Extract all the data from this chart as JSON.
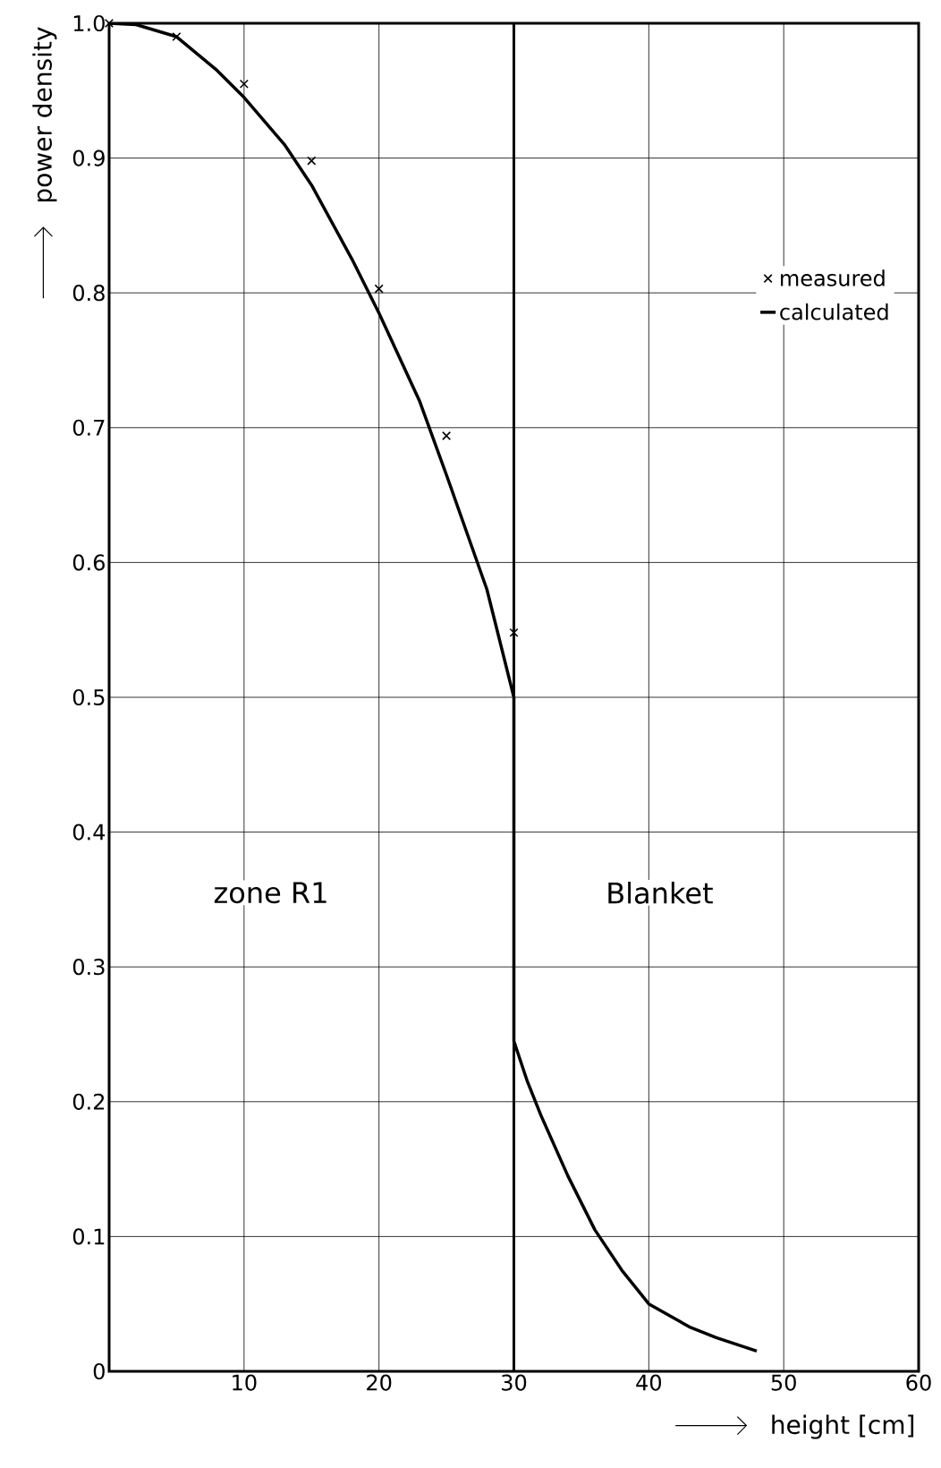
{
  "chart_data": {
    "type": "line",
    "xlabel": "height [cm]",
    "ylabel": "power density",
    "xlim": [
      0,
      60
    ],
    "ylim": [
      0,
      1.0
    ],
    "xticks": [
      {
        "value": 0,
        "label": null
      },
      10,
      20,
      30,
      40,
      50,
      60
    ],
    "yticks": [
      0,
      0.1,
      0.2,
      0.3,
      0.4,
      0.5,
      0.6,
      0.7,
      0.8,
      0.9,
      {
        "value": 1.0,
        "label": "1.0"
      }
    ],
    "grid": true,
    "legend": "top right",
    "series": [
      {
        "name": "measured",
        "type": "scatter",
        "marker": "cross",
        "color": "#000000",
        "x": [
          0,
          5,
          10,
          15,
          20,
          25,
          30
        ],
        "values": [
          1.0,
          0.99,
          0.955,
          0.898,
          0.803,
          0.694,
          0.548
        ]
      },
      {
        "name": "calculated",
        "color": "#000000",
        "line_style": "solid",
        "x": [
          0,
          2,
          5,
          8,
          10,
          13,
          15,
          18,
          20,
          23,
          25,
          28,
          30,
          30,
          31,
          32,
          34,
          36,
          38,
          40,
          43,
          45,
          48
        ],
        "values": [
          1.0,
          0.999,
          0.99,
          0.965,
          0.945,
          0.91,
          0.88,
          0.825,
          0.785,
          0.72,
          0.665,
          0.58,
          0.5,
          0.245,
          0.215,
          0.19,
          0.145,
          0.105,
          0.075,
          0.05,
          0.033,
          0.025,
          0.015
        ]
      }
    ],
    "ref_lines": [
      {
        "axis": "x",
        "value": 30,
        "color": "#000000"
      }
    ],
    "annotations": [
      "zone R1",
      "Blanket"
    ]
  }
}
